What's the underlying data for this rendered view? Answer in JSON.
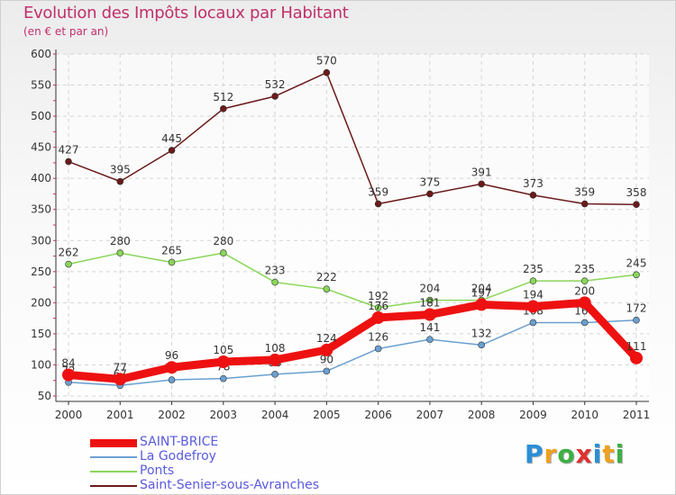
{
  "header": {
    "title": "Evolution des Impôts locaux par Habitant",
    "subtitle": "(en € et par an)"
  },
  "brand": {
    "letters": [
      "P",
      "r",
      "o",
      "x",
      "i",
      "t",
      "i"
    ],
    "colors": [
      "#2a8fd8",
      "#f0a020",
      "#3cb043",
      "#e03030",
      "#2a8fd8",
      "#f0a020",
      "#3cb043"
    ]
  },
  "chart_data": {
    "type": "line",
    "x": [
      "2000",
      "2001",
      "2002",
      "2003",
      "2004",
      "2005",
      "2006",
      "2007",
      "2008",
      "2009",
      "2010",
      "2011"
    ],
    "ylim": [
      50,
      600
    ],
    "yticks": [
      50,
      100,
      150,
      200,
      250,
      300,
      350,
      400,
      450,
      500,
      550,
      600
    ],
    "grid": true,
    "legend_position": "bottom-left",
    "series": [
      {
        "name": "Saint-Senier-sous-Avranches",
        "color": "#6b1a1a",
        "values": [
          427,
          395,
          445,
          512,
          532,
          570,
          359,
          375,
          391,
          373,
          359,
          358
        ],
        "labels": [
          "427",
          "395",
          "445",
          "512",
          "532",
          "570",
          "359",
          "375",
          "391",
          "373",
          "359",
          "358"
        ]
      },
      {
        "name": "Ponts",
        "color": "#8ad65a",
        "values": [
          262,
          280,
          265,
          280,
          233,
          222,
          192,
          204,
          204,
          235,
          235,
          245
        ],
        "labels": [
          "262",
          "280",
          "265",
          "280",
          "233",
          "222",
          "192",
          "204",
          "204",
          "235",
          "235",
          "245"
        ]
      },
      {
        "name": "La Godefroy",
        "color": "#6aa0d0",
        "values": [
          72,
          67,
          76,
          78,
          85,
          90,
          126,
          141,
          132,
          168,
          168,
          172
        ],
        "labels": [
          "72",
          "67",
          "76",
          "78",
          "85",
          "90",
          "126",
          "141",
          "132",
          "168",
          "168",
          "172"
        ]
      },
      {
        "name": "SAINT-BRICE",
        "color": "#ee1111",
        "values": [
          84,
          77,
          96,
          105,
          108,
          124,
          176,
          181,
          197,
          194,
          200,
          111
        ],
        "labels": [
          "84",
          "77",
          "96",
          "105",
          "108",
          "124",
          "176",
          "181",
          "197",
          "194",
          "200",
          "111"
        ]
      }
    ],
    "legend": [
      "SAINT-BRICE",
      "La Godefroy",
      "Ponts",
      "Saint-Senier-sous-Avranches"
    ]
  }
}
